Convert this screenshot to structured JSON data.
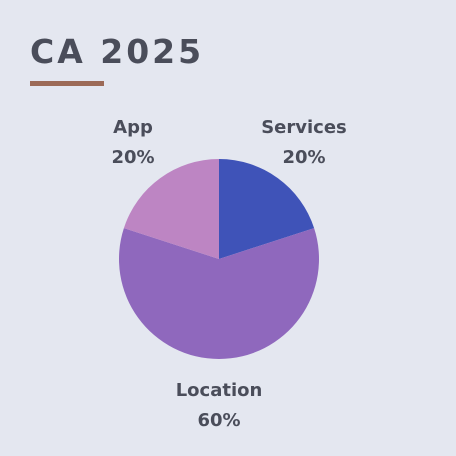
{
  "title": "CA 2025",
  "colors": {
    "background": "#e4e7f0",
    "title": "#4a4d5a",
    "title_underline": "#9c6a57",
    "label": "#4a4d5a"
  },
  "chart_data": {
    "type": "pie",
    "title": "CA 2025",
    "slices": [
      {
        "label": "Services",
        "value": 20,
        "value_label": "20%",
        "color": "#3f53b8"
      },
      {
        "label": "Location",
        "value": 60,
        "value_label": "60%",
        "color": "#8f68bd"
      },
      {
        "label": "App",
        "value": 20,
        "value_label": "20%",
        "color": "#bd85c3"
      }
    ],
    "start_angle_deg": 0,
    "direction": "clockwise",
    "legend": "none"
  }
}
